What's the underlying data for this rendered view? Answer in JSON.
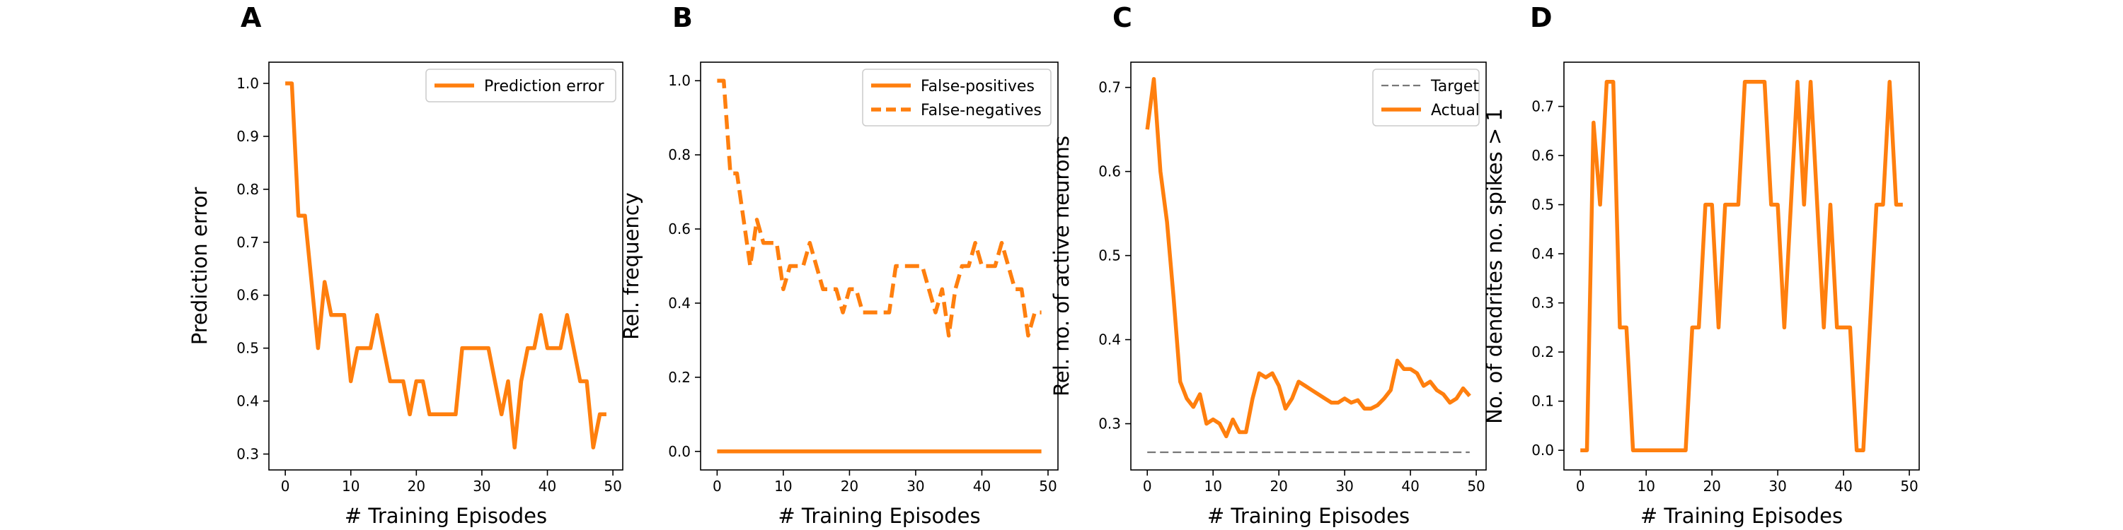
{
  "colors": {
    "series": "#ff7f0e",
    "target": "#777777",
    "axes": "#000000"
  },
  "chart_data": [
    {
      "panel": "A",
      "type": "line",
      "xlabel": "# Training Episodes",
      "ylabel": "Prediction error",
      "xlim": [
        -2.5,
        51.5
      ],
      "ylim": [
        0.27,
        1.04
      ],
      "xticks": [
        0,
        10,
        20,
        30,
        40,
        50
      ],
      "yticks": [
        0.3,
        0.4,
        0.5,
        0.6,
        0.7,
        0.8,
        0.9,
        1.0
      ],
      "ytick_labels": [
        "0.3",
        "0.4",
        "0.5",
        "0.6",
        "0.7",
        "0.8",
        "0.9",
        "1.0"
      ],
      "legend": {
        "position": "top-right"
      },
      "series": [
        {
          "name": "Prediction error",
          "style": "solid",
          "x": [
            0,
            1,
            2,
            3,
            4,
            5,
            6,
            7,
            8,
            9,
            10,
            11,
            12,
            13,
            14,
            15,
            16,
            17,
            18,
            19,
            20,
            21,
            22,
            23,
            24,
            25,
            26,
            27,
            28,
            29,
            30,
            31,
            32,
            33,
            34,
            35,
            36,
            37,
            38,
            39,
            40,
            41,
            42,
            43,
            44,
            45,
            46,
            47,
            48,
            49
          ],
          "values": [
            1.0,
            1.0,
            0.75,
            0.75,
            0.625,
            0.5,
            0.625,
            0.5625,
            0.5625,
            0.5625,
            0.4375,
            0.5,
            0.5,
            0.5,
            0.5625,
            0.5,
            0.4375,
            0.4375,
            0.4375,
            0.375,
            0.4375,
            0.4375,
            0.375,
            0.375,
            0.375,
            0.375,
            0.375,
            0.5,
            0.5,
            0.5,
            0.5,
            0.5,
            0.4375,
            0.375,
            0.4375,
            0.3125,
            0.4375,
            0.5,
            0.5,
            0.5625,
            0.5,
            0.5,
            0.5,
            0.5625,
            0.5,
            0.4375,
            0.4375,
            0.3125,
            0.375,
            0.375
          ]
        }
      ]
    },
    {
      "panel": "B",
      "type": "line",
      "xlabel": "# Training Episodes",
      "ylabel": "Rel. frequency",
      "xlim": [
        -2.5,
        51.5
      ],
      "ylim": [
        -0.05,
        1.05
      ],
      "xticks": [
        0,
        10,
        20,
        30,
        40,
        50
      ],
      "yticks": [
        0.0,
        0.2,
        0.4,
        0.6,
        0.8,
        1.0
      ],
      "ytick_labels": [
        "0.0",
        "0.2",
        "0.4",
        "0.6",
        "0.8",
        "1.0"
      ],
      "legend": {
        "position": "top-right"
      },
      "series": [
        {
          "name": "False-positives",
          "style": "solid",
          "x": [
            0,
            49
          ],
          "values": [
            0,
            0
          ]
        },
        {
          "name": "False-negatives",
          "style": "dashed",
          "x": [
            0,
            1,
            2,
            3,
            4,
            5,
            6,
            7,
            8,
            9,
            10,
            11,
            12,
            13,
            14,
            15,
            16,
            17,
            18,
            19,
            20,
            21,
            22,
            23,
            24,
            25,
            26,
            27,
            28,
            29,
            30,
            31,
            32,
            33,
            34,
            35,
            36,
            37,
            38,
            39,
            40,
            41,
            42,
            43,
            44,
            45,
            46,
            47,
            48,
            49
          ],
          "values": [
            1.0,
            1.0,
            0.75,
            0.75,
            0.625,
            0.5,
            0.625,
            0.5625,
            0.5625,
            0.5625,
            0.4375,
            0.5,
            0.5,
            0.5,
            0.5625,
            0.5,
            0.4375,
            0.4375,
            0.4375,
            0.375,
            0.4375,
            0.4375,
            0.375,
            0.375,
            0.375,
            0.375,
            0.375,
            0.5,
            0.5,
            0.5,
            0.5,
            0.5,
            0.4375,
            0.375,
            0.4375,
            0.3125,
            0.4375,
            0.5,
            0.5,
            0.5625,
            0.5,
            0.5,
            0.5,
            0.5625,
            0.5,
            0.4375,
            0.4375,
            0.3125,
            0.375,
            0.375
          ]
        }
      ]
    },
    {
      "panel": "C",
      "type": "line",
      "xlabel": "# Training Episodes",
      "ylabel": "Rel. no. of active neurons",
      "xlim": [
        -2.5,
        51.5
      ],
      "ylim": [
        0.245,
        0.73
      ],
      "xticks": [
        0,
        10,
        20,
        30,
        40,
        50
      ],
      "yticks": [
        0.3,
        0.4,
        0.5,
        0.6,
        0.7
      ],
      "ytick_labels": [
        "0.3",
        "0.4",
        "0.5",
        "0.6",
        "0.7"
      ],
      "legend": {
        "position": "top-right"
      },
      "series": [
        {
          "name": "Target",
          "style": "dashed-thin",
          "x": [
            0,
            49
          ],
          "values": [
            0.266,
            0.266
          ]
        },
        {
          "name": "Actual",
          "style": "solid",
          "x": [
            0,
            1,
            2,
            3,
            4,
            5,
            6,
            7,
            8,
            9,
            10,
            11,
            12,
            13,
            14,
            15,
            16,
            17,
            18,
            19,
            20,
            21,
            22,
            23,
            24,
            25,
            26,
            27,
            28,
            29,
            30,
            31,
            32,
            33,
            34,
            35,
            36,
            37,
            38,
            39,
            40,
            41,
            42,
            43,
            44,
            45,
            46,
            47,
            48,
            49
          ],
          "values": [
            0.65,
            0.71,
            0.6,
            0.54,
            0.45,
            0.35,
            0.33,
            0.32,
            0.335,
            0.3,
            0.305,
            0.3,
            0.285,
            0.305,
            0.29,
            0.29,
            0.33,
            0.36,
            0.355,
            0.36,
            0.345,
            0.318,
            0.33,
            0.35,
            0.345,
            0.34,
            0.335,
            0.33,
            0.325,
            0.325,
            0.33,
            0.325,
            0.328,
            0.318,
            0.318,
            0.322,
            0.33,
            0.34,
            0.375,
            0.365,
            0.365,
            0.36,
            0.345,
            0.35,
            0.34,
            0.335,
            0.325,
            0.33,
            0.342,
            0.333
          ]
        }
      ]
    },
    {
      "panel": "D",
      "type": "line",
      "xlabel": "# Training Episodes",
      "ylabel": "No. of dendrites no. spikes > 1",
      "xlim": [
        -2.5,
        51.5
      ],
      "ylim": [
        -0.04,
        0.79
      ],
      "xticks": [
        0,
        10,
        20,
        30,
        40,
        50
      ],
      "yticks": [
        0.0,
        0.1,
        0.2,
        0.3,
        0.4,
        0.5,
        0.6,
        0.7
      ],
      "ytick_labels": [
        "0.0",
        "0.1",
        "0.2",
        "0.3",
        "0.4",
        "0.5",
        "0.6",
        "0.7"
      ],
      "series": [
        {
          "style": "solid",
          "x": [
            0,
            1,
            2,
            3,
            4,
            5,
            6,
            7,
            8,
            9,
            10,
            11,
            12,
            13,
            14,
            15,
            16,
            17,
            18,
            19,
            20,
            21,
            22,
            23,
            24,
            25,
            26,
            27,
            28,
            29,
            30,
            31,
            32,
            33,
            34,
            35,
            36,
            37,
            38,
            39,
            40,
            41,
            42,
            43,
            44,
            45,
            46,
            47,
            48,
            49
          ],
          "values": [
            0,
            0,
            0.667,
            0.5,
            0.75,
            0.75,
            0.25,
            0.25,
            0,
            0,
            0,
            0,
            0,
            0,
            0,
            0,
            0,
            0.25,
            0.25,
            0.5,
            0.5,
            0.25,
            0.5,
            0.5,
            0.5,
            0.75,
            0.75,
            0.75,
            0.75,
            0.5,
            0.5,
            0.25,
            0.5,
            0.75,
            0.5,
            0.75,
            0.5,
            0.25,
            0.5,
            0.25,
            0.25,
            0.25,
            0,
            0,
            0.25,
            0.5,
            0.5,
            0.75,
            0.5,
            0.5
          ]
        }
      ]
    }
  ]
}
